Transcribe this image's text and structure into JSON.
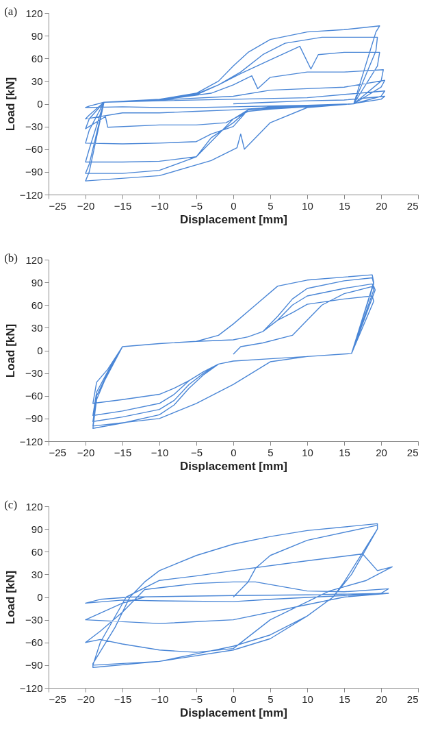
{
  "chart_data": [
    {
      "type": "line",
      "title": "(a)",
      "xlabel": "Displacement [mm]",
      "ylabel": "Load [kN]",
      "xlim": [
        -25,
        25
      ],
      "ylim": [
        -120,
        120
      ],
      "xticks": [
        -25,
        -20,
        -15,
        -10,
        -5,
        0,
        5,
        10,
        15,
        20,
        25
      ],
      "yticks": [
        -120,
        -90,
        -60,
        -30,
        0,
        30,
        60,
        90,
        120
      ],
      "series": [
        {
          "color": "#4a86d6",
          "x": [
            0,
            5,
            10,
            15,
            20.5,
            20,
            16,
            10,
            5,
            0,
            -5,
            -10,
            -15,
            -20,
            -19.5,
            -17.5,
            -10,
            0,
            10,
            20.5,
            20,
            16.3,
            5,
            0,
            -5,
            -10,
            -15,
            -20,
            -19.5,
            -17.5,
            -10,
            0,
            5,
            10,
            15,
            20.5,
            20,
            16.3,
            5,
            2,
            -1,
            -5,
            -10,
            -17,
            -17.3,
            -20,
            -19.5,
            -17.5,
            -10,
            -3,
            0,
            2.5,
            3.3,
            5,
            10,
            15,
            20.3,
            20,
            16.3,
            5,
            2,
            0,
            -3,
            -5,
            -10,
            -15,
            -20,
            -19.5,
            -17.5,
            -10,
            -5,
            -2,
            1,
            5,
            9,
            10.5,
            11.5,
            15,
            19.8,
            19.5,
            16.3,
            5,
            2,
            0,
            -1.5,
            -3,
            -5,
            -10,
            -15,
            -20,
            -19.5,
            -17.5,
            -10,
            -5,
            -2,
            1,
            4,
            7,
            12,
            19.5,
            19.3,
            16.3,
            5,
            2,
            0,
            -3,
            -5,
            -10,
            -15,
            -20,
            -19.5,
            -17.5,
            -10,
            -5,
            -2,
            0,
            2,
            5,
            10,
            15,
            19.8,
            19.3,
            16.3,
            10,
            5,
            1.5,
            1,
            0.5,
            -3,
            -10,
            -20,
            -19.5,
            -17.5
          ],
          "values": [
            0,
            2,
            4,
            5,
            10,
            6,
            0,
            -2,
            -3,
            -4,
            -5,
            -5,
            -4,
            -5,
            -3,
            2,
            4,
            6,
            8,
            17,
            10,
            0,
            -5,
            -8,
            -10,
            -12,
            -12,
            -20,
            -15,
            2,
            5,
            10,
            18,
            20,
            22,
            31,
            22,
            0,
            -7,
            -10,
            -25,
            -28,
            -28,
            -31,
            -17,
            -33,
            -20,
            2,
            5,
            14,
            25,
            37,
            20,
            35,
            42,
            42,
            45,
            30,
            0,
            -6,
            -8,
            -30,
            -40,
            -50,
            -52,
            -53,
            -52,
            -35,
            2,
            5,
            12,
            25,
            40,
            58,
            76,
            46,
            65,
            68,
            68,
            50,
            0,
            -4,
            -8,
            -20,
            -35,
            -50,
            -70,
            -76,
            -77,
            -77,
            -60,
            2,
            5,
            13,
            25,
            42,
            65,
            80,
            88,
            88,
            70,
            0,
            -5,
            -8,
            -25,
            -45,
            -70,
            -88,
            -92,
            -92,
            -80,
            2,
            6,
            14,
            30,
            50,
            68,
            85,
            95,
            98,
            103,
            95,
            0,
            -5,
            -25,
            -60,
            -40,
            -58,
            -75,
            -95,
            -102,
            -90,
            2
          ]
        }
      ]
    },
    {
      "type": "line",
      "title": "(b)",
      "xlabel": "Displacement [mm]",
      "ylabel": "Load [kN]",
      "xlim": [
        -25,
        25
      ],
      "ylim": [
        -120,
        120
      ],
      "xticks": [
        -25,
        -20,
        -15,
        -10,
        -5,
        0,
        5,
        10,
        15,
        20,
        25
      ],
      "yticks": [
        -120,
        -90,
        -60,
        -30,
        0,
        30,
        60,
        90,
        120
      ],
      "series": [
        {
          "color": "#4a86d6",
          "x": [
            0,
            1,
            4,
            8,
            10,
            12,
            15,
            19,
            19.2,
            16,
            10,
            5,
            0,
            -5,
            -10,
            -19,
            -18.5,
            -15,
            -10,
            -5,
            -2,
            0,
            3,
            6,
            10,
            18.8,
            19,
            16,
            10,
            5,
            0,
            -2,
            -4,
            -6,
            -8,
            -10,
            -15,
            -19,
            -18.5,
            -17,
            -15,
            -10,
            -5,
            0,
            2,
            4,
            6,
            8,
            10,
            15,
            18.8,
            19,
            16,
            10,
            5,
            0,
            -2,
            -4,
            -6,
            -8,
            -10,
            -15,
            -19,
            -18.5,
            -17,
            -15,
            -10,
            -5,
            0,
            2,
            4,
            6,
            8,
            10,
            15,
            18.8,
            19,
            16,
            10,
            5,
            0,
            -2,
            -4,
            -6,
            -8,
            -10,
            -15,
            -19,
            -18.5,
            -17,
            -15,
            -10,
            -5,
            0,
            2,
            4,
            6,
            8,
            10,
            15,
            18.8,
            19,
            16,
            10,
            5,
            0,
            -2,
            -4,
            -6,
            -8,
            -10,
            -15,
            -19,
            -18.5,
            -17,
            -15
          ],
          "values": [
            -5,
            5,
            10,
            20,
            40,
            60,
            75,
            85,
            80,
            -4,
            -8,
            -15,
            -45,
            -70,
            -90,
            -100,
            -60,
            5,
            9,
            12,
            20,
            35,
            60,
            85,
            93,
            100,
            90,
            -4,
            -8,
            -11,
            -14,
            -18,
            -28,
            -40,
            -50,
            -58,
            -65,
            -70,
            -42,
            -25,
            5,
            9,
            12,
            14,
            18,
            25,
            40,
            50,
            61,
            68,
            72,
            65,
            -4,
            -8,
            -11,
            -14,
            -18,
            -28,
            -40,
            -58,
            -70,
            -80,
            -86,
            -55,
            -28,
            5,
            9,
            12,
            14,
            18,
            25,
            40,
            60,
            72,
            82,
            88,
            80,
            -4,
            -8,
            -11,
            -14,
            -18,
            -30,
            -45,
            -66,
            -78,
            -88,
            -94,
            -60,
            -30,
            5,
            9,
            12,
            14,
            18,
            25,
            45,
            68,
            82,
            92,
            96,
            88,
            -4,
            -8,
            -11,
            -14,
            -18,
            -32,
            -50,
            -72,
            -85,
            -96,
            -103,
            -65,
            -30,
            5
          ]
        }
      ]
    },
    {
      "type": "line",
      "title": "(c)",
      "xlabel": "Displacement [mm]",
      "ylabel": "Load [kN]",
      "xlim": [
        -25,
        25
      ],
      "ylim": [
        -120,
        120
      ],
      "xticks": [
        -25,
        -20,
        -15,
        -10,
        -5,
        0,
        5,
        10,
        15,
        20,
        25
      ],
      "yticks": [
        -120,
        -90,
        -60,
        -30,
        0,
        30,
        60,
        90,
        120
      ],
      "series": [
        {
          "color": "#4a86d6",
          "x": [
            0,
            2,
            3,
            5,
            10,
            19.5,
            19.5,
            15,
            13.5,
            10,
            5,
            0,
            -5,
            -10,
            -19,
            -19,
            -16,
            -14,
            -12,
            -10,
            -5,
            0,
            5,
            10,
            19.5,
            19.5,
            16,
            13.5,
            10,
            5,
            0,
            -10,
            -19,
            -18,
            -14.5,
            -10,
            -5,
            0,
            10,
            17.5,
            19.5,
            21.5,
            18,
            13,
            5,
            0,
            -5,
            -10,
            -15,
            -18,
            -20,
            -18,
            -15,
            -12,
            -5,
            0,
            3,
            10,
            15,
            21,
            20,
            15,
            5,
            0,
            -10,
            -15,
            -20,
            -18,
            -14,
            0,
            10,
            21,
            15,
            10,
            0,
            -10,
            -20,
            -15,
            -12
          ],
          "values": [
            0,
            20,
            38,
            55,
            75,
            95,
            90,
            20,
            0,
            -25,
            -50,
            -65,
            -75,
            -85,
            -93,
            -88,
            -40,
            0,
            20,
            35,
            55,
            70,
            80,
            88,
            97,
            90,
            30,
            0,
            -25,
            -55,
            -70,
            -85,
            -90,
            -60,
            0,
            22,
            28,
            35,
            48,
            57,
            35,
            40,
            22,
            8,
            -30,
            -68,
            -73,
            -70,
            -62,
            -56,
            -60,
            -45,
            -20,
            10,
            18,
            20,
            20,
            8,
            7,
            11,
            5,
            2,
            -3,
            -6,
            -5,
            -4,
            -8,
            -3,
            0,
            2,
            3,
            5,
            0,
            -10,
            -30,
            -35,
            -30,
            -8,
            0
          ]
        }
      ]
    }
  ]
}
